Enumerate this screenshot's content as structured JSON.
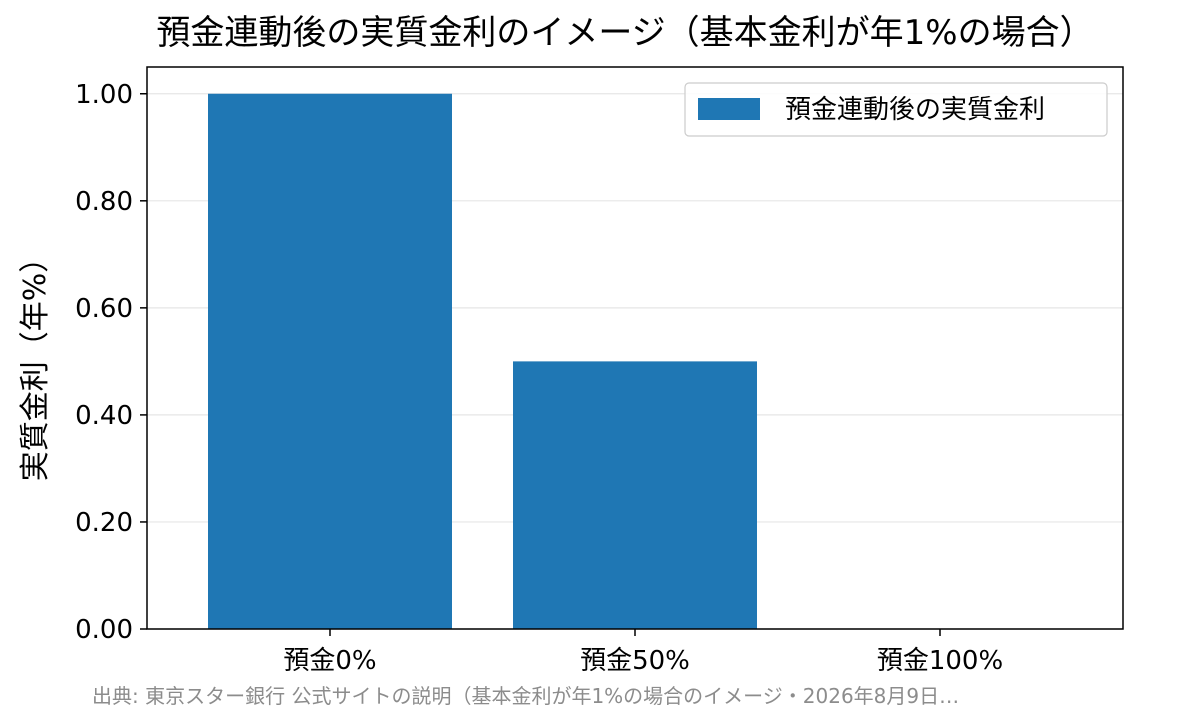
{
  "chart_data": {
    "type": "bar",
    "title": "預金連動後の実質金利のイメージ（基本金利が年1%の場合）",
    "xlabel": "",
    "ylabel": "実質金利（年%）",
    "categories": [
      "預金0%",
      "預金50%",
      "預金100%"
    ],
    "series": [
      {
        "name": "預金連動後の実質金利",
        "values": [
          1.0,
          0.5,
          0.0
        ],
        "color": "#1f77b4"
      }
    ],
    "ylim": [
      0,
      1.05
    ],
    "yticks": [
      "0.00",
      "0.20",
      "0.40",
      "0.60",
      "0.80",
      "1.00"
    ],
    "grid": "y",
    "legend_position": "top-right"
  },
  "source_note": "出典: 東京スター銀行 公式サイトの説明（基本金利が年1%の場合のイメージ・2026年8月9日…"
}
